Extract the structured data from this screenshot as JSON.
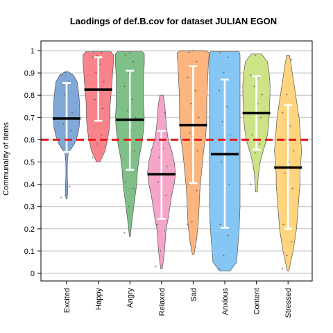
{
  "chart_data": {
    "type": "violin",
    "title": "Laodings of def.B.cov for dataset JULIAN EGON",
    "xlabel": "",
    "ylabel": "Communality of items",
    "ylim": [
      -0.04,
      1.04
    ],
    "y_ticks": [
      0,
      0.1,
      0.2,
      0.3,
      0.4,
      0.5,
      0.6,
      0.7,
      0.8,
      0.9,
      1
    ],
    "y_tick_labels": [
      "0",
      "0.1",
      "0.2",
      "0.3",
      "0.4",
      "0.5",
      "0.6",
      "0.7",
      "0.8",
      "0.9",
      "1"
    ],
    "grid": true,
    "reference_line": {
      "y": 0.6,
      "color": "#e41a1c",
      "style": "dashed"
    },
    "categories": [
      "Excited",
      "Happy",
      "Angry",
      "Relaxed",
      "Sad",
      "Anxious",
      "Content",
      "Stressed"
    ],
    "series": [
      {
        "category": "Excited",
        "color": "#80a8d6",
        "median": 0.695,
        "error_bar": [
          0.545,
          0.855
        ],
        "profile": [
          [
            0.335,
            0.006
          ],
          [
            0.36,
            0.012
          ],
          [
            0.39,
            0.014
          ],
          [
            0.42,
            0.01
          ],
          [
            0.46,
            0.008
          ],
          [
            0.5,
            0.01
          ],
          [
            0.54,
            0.02
          ],
          [
            0.58,
            0.09
          ],
          [
            0.62,
            0.13
          ],
          [
            0.66,
            0.15
          ],
          [
            0.7,
            0.155
          ],
          [
            0.74,
            0.155
          ],
          [
            0.78,
            0.15
          ],
          [
            0.82,
            0.14
          ],
          [
            0.86,
            0.125
          ],
          [
            0.89,
            0.08
          ],
          [
            0.905,
            0.02
          ]
        ],
        "points": [
          0.34,
          0.35,
          0.39,
          0.56,
          0.6,
          0.64,
          0.67,
          0.69,
          0.72,
          0.8,
          0.86,
          0.89,
          0.9
        ]
      },
      {
        "category": "Happy",
        "color": "#f8838a",
        "median": 0.825,
        "error_bar": [
          0.685,
          0.97
        ],
        "profile": [
          [
            0.5,
            0.02
          ],
          [
            0.55,
            0.08
          ],
          [
            0.6,
            0.11
          ],
          [
            0.65,
            0.13
          ],
          [
            0.7,
            0.14
          ],
          [
            0.75,
            0.14
          ],
          [
            0.8,
            0.15
          ],
          [
            0.85,
            0.16
          ],
          [
            0.9,
            0.17
          ],
          [
            0.95,
            0.18
          ],
          [
            0.98,
            0.18
          ],
          [
            0.995,
            0.15
          ]
        ],
        "points": [
          0.52,
          0.58,
          0.62,
          0.66,
          0.7,
          0.74,
          0.78,
          0.82,
          0.86,
          0.9,
          0.94,
          0.97,
          0.98,
          0.99,
          0.99
        ]
      },
      {
        "category": "Angry",
        "color": "#7fc088",
        "median": 0.69,
        "error_bar": [
          0.465,
          0.91
        ],
        "profile": [
          [
            0.165,
            0.006
          ],
          [
            0.22,
            0.02
          ],
          [
            0.28,
            0.04
          ],
          [
            0.34,
            0.06
          ],
          [
            0.4,
            0.08
          ],
          [
            0.46,
            0.09
          ],
          [
            0.52,
            0.11
          ],
          [
            0.58,
            0.14
          ],
          [
            0.64,
            0.16
          ],
          [
            0.7,
            0.17
          ],
          [
            0.76,
            0.16
          ],
          [
            0.82,
            0.16
          ],
          [
            0.88,
            0.16
          ],
          [
            0.94,
            0.17
          ],
          [
            0.985,
            0.17
          ],
          [
            0.995,
            0.15
          ]
        ],
        "points": [
          0.18,
          0.3,
          0.38,
          0.41,
          0.48,
          0.55,
          0.6,
          0.64,
          0.7,
          0.73,
          0.78,
          0.84,
          0.9,
          0.95,
          0.98,
          0.99
        ]
      },
      {
        "category": "Relaxed",
        "color": "#f4a5c8",
        "median": 0.445,
        "error_bar": [
          0.245,
          0.64
        ],
        "profile": [
          [
            0.02,
            0.008
          ],
          [
            0.05,
            0.02
          ],
          [
            0.1,
            0.035
          ],
          [
            0.15,
            0.045
          ],
          [
            0.2,
            0.055
          ],
          [
            0.25,
            0.08
          ],
          [
            0.3,
            0.1
          ],
          [
            0.35,
            0.12
          ],
          [
            0.4,
            0.15
          ],
          [
            0.45,
            0.165
          ],
          [
            0.5,
            0.15
          ],
          [
            0.55,
            0.12
          ],
          [
            0.6,
            0.08
          ],
          [
            0.65,
            0.06
          ],
          [
            0.7,
            0.05
          ],
          [
            0.75,
            0.04
          ],
          [
            0.8,
            0.02
          ]
        ],
        "points": [
          0.03,
          0.1,
          0.19,
          0.22,
          0.3,
          0.35,
          0.41,
          0.45,
          0.48,
          0.52,
          0.56,
          0.6,
          0.64,
          0.72
        ]
      },
      {
        "category": "Sad",
        "color": "#fdb57f",
        "median": 0.665,
        "error_bar": [
          0.405,
          0.93
        ],
        "profile": [
          [
            0.085,
            0.01
          ],
          [
            0.15,
            0.04
          ],
          [
            0.22,
            0.06
          ],
          [
            0.3,
            0.07
          ],
          [
            0.38,
            0.08
          ],
          [
            0.46,
            0.1
          ],
          [
            0.54,
            0.12
          ],
          [
            0.62,
            0.15
          ],
          [
            0.7,
            0.16
          ],
          [
            0.78,
            0.16
          ],
          [
            0.86,
            0.17
          ],
          [
            0.94,
            0.18
          ],
          [
            0.99,
            0.19
          ],
          [
            1.0,
            0.15
          ]
        ],
        "points": [
          0.22,
          0.23,
          0.37,
          0.4,
          0.48,
          0.55,
          0.63,
          0.66,
          0.7,
          0.76,
          0.82,
          0.88,
          0.93,
          0.95,
          0.99,
          1.0
        ]
      },
      {
        "category": "Anxious",
        "color": "#86c6f4",
        "median": 0.535,
        "error_bar": [
          0.205,
          0.87
        ],
        "profile": [
          [
            0.01,
            0.06
          ],
          [
            0.05,
            0.14
          ],
          [
            0.1,
            0.15
          ],
          [
            0.2,
            0.17
          ],
          [
            0.3,
            0.18
          ],
          [
            0.4,
            0.18
          ],
          [
            0.5,
            0.18
          ],
          [
            0.6,
            0.18
          ],
          [
            0.7,
            0.18
          ],
          [
            0.8,
            0.18
          ],
          [
            0.9,
            0.18
          ],
          [
            0.98,
            0.18
          ],
          [
            0.995,
            0.17
          ]
        ],
        "points": [
          0.02,
          0.08,
          0.17,
          0.22,
          0.34,
          0.4,
          0.5,
          0.54,
          0.62,
          0.68,
          0.75,
          0.82,
          0.9,
          0.97,
          0.99
        ]
      },
      {
        "category": "Content",
        "color": "#cde387",
        "median": 0.72,
        "error_bar": [
          0.555,
          0.885
        ],
        "profile": [
          [
            0.365,
            0.01
          ],
          [
            0.4,
            0.015
          ],
          [
            0.45,
            0.025
          ],
          [
            0.5,
            0.045
          ],
          [
            0.55,
            0.08
          ],
          [
            0.6,
            0.12
          ],
          [
            0.65,
            0.14
          ],
          [
            0.7,
            0.15
          ],
          [
            0.75,
            0.155
          ],
          [
            0.8,
            0.16
          ],
          [
            0.85,
            0.16
          ],
          [
            0.9,
            0.15
          ],
          [
            0.95,
            0.13
          ],
          [
            0.985,
            0.06
          ]
        ],
        "points": [
          0.4,
          0.54,
          0.58,
          0.62,
          0.66,
          0.7,
          0.72,
          0.76,
          0.8,
          0.84,
          0.88,
          0.89,
          0.98
        ]
      },
      {
        "category": "Stressed",
        "color": "#fed47f",
        "median": 0.475,
        "error_bar": [
          0.2,
          0.755
        ],
        "profile": [
          [
            0.01,
            0.01
          ],
          [
            0.05,
            0.03
          ],
          [
            0.1,
            0.06
          ],
          [
            0.15,
            0.08
          ],
          [
            0.2,
            0.1
          ],
          [
            0.25,
            0.11
          ],
          [
            0.3,
            0.12
          ],
          [
            0.35,
            0.13
          ],
          [
            0.4,
            0.14
          ],
          [
            0.45,
            0.14
          ],
          [
            0.5,
            0.15
          ],
          [
            0.55,
            0.16
          ],
          [
            0.6,
            0.15
          ],
          [
            0.65,
            0.14
          ],
          [
            0.7,
            0.13
          ],
          [
            0.75,
            0.11
          ],
          [
            0.8,
            0.09
          ],
          [
            0.85,
            0.07
          ],
          [
            0.9,
            0.05
          ],
          [
            0.95,
            0.03
          ],
          [
            0.98,
            0.015
          ]
        ],
        "points": [
          0.02,
          0.08,
          0.14,
          0.22,
          0.3,
          0.38,
          0.45,
          0.5,
          0.55,
          0.6,
          0.66,
          0.72,
          0.8,
          0.96
        ]
      }
    ]
  }
}
